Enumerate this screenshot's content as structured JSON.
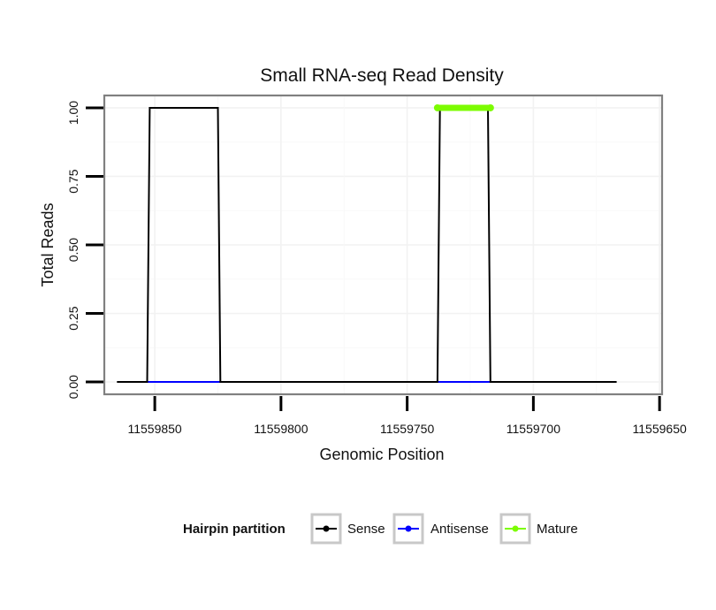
{
  "chart_data": {
    "type": "line",
    "title": "Small RNA-seq Read Density",
    "xlabel": "Genomic Position",
    "ylabel": "Total Reads",
    "x_reversed": true,
    "xlim": [
      11559870,
      11559649
    ],
    "ylim": [
      -0.045,
      1.045
    ],
    "x_ticks": [
      11559850,
      11559800,
      11559750,
      11559700,
      11559650
    ],
    "x_tick_labels": [
      "11559850",
      "11559800",
      "11559750",
      "11559700",
      "11559650"
    ],
    "y_ticks": [
      0,
      0.25,
      0.5,
      0.75,
      1.0
    ],
    "y_tick_labels": [
      "0.00",
      "0.25",
      "0.50",
      "0.75",
      "1.00"
    ],
    "grid": true,
    "legend": {
      "title": "Hairpin partition",
      "position": "bottom",
      "entries": [
        {
          "name": "Sense",
          "color": "#000000"
        },
        {
          "name": "Antisense",
          "color": "#0000ff"
        },
        {
          "name": "Mature",
          "color": "#7cfc00"
        }
      ]
    },
    "series": [
      {
        "name": "Sense",
        "color": "#000000",
        "points": [
          [
            11559865,
            0
          ],
          [
            11559853,
            0
          ],
          [
            11559852,
            1
          ],
          [
            11559825,
            1
          ],
          [
            11559824,
            0
          ],
          [
            11559738,
            0
          ],
          [
            11559737,
            1
          ],
          [
            11559718,
            1
          ],
          [
            11559717,
            0
          ],
          [
            11559667,
            0
          ]
        ]
      },
      {
        "name": "Antisense",
        "color": "#0000ff",
        "points": [
          [
            11559853,
            0
          ],
          [
            11559824,
            0
          ],
          [
            11559738,
            0
          ],
          [
            11559717,
            0
          ]
        ]
      },
      {
        "name": "Mature",
        "color": "#7cfc00",
        "points": [
          [
            11559738,
            1
          ],
          [
            11559717,
            1
          ]
        ]
      }
    ]
  }
}
